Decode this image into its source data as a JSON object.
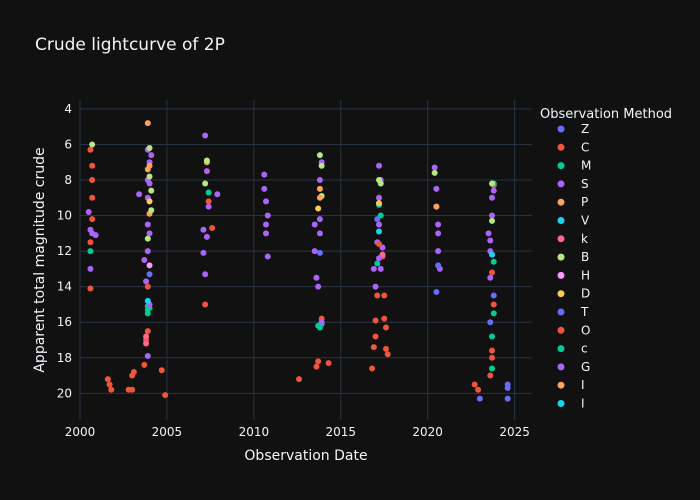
{
  "chart_data": {
    "type": "scatter",
    "title": "Crude lightcurve of 2P",
    "xlabel": "Observation Date",
    "ylabel": "Apparent total magnitude crude",
    "xlim": [
      2000,
      2026
    ],
    "ylim": [
      21.5,
      3.5
    ],
    "y_reversed": true,
    "x_ticks": [
      2000,
      2005,
      2010,
      2015,
      2020,
      2025
    ],
    "y_ticks": [
      4,
      6,
      8,
      10,
      12,
      14,
      16,
      18,
      20
    ],
    "grid": true,
    "legend_title": "Observation Method",
    "legend_position": "right",
    "series": [
      {
        "name": "Z",
        "color": "#636efa",
        "points": [
          [
            2020.5,
            14.3
          ],
          [
            2023.0,
            20.3
          ],
          [
            2023.6,
            16.0
          ],
          [
            2023.8,
            14.5
          ],
          [
            2024.6,
            19.5
          ],
          [
            2024.6,
            19.7
          ],
          [
            2024.6,
            20.3
          ]
        ]
      },
      {
        "name": "C",
        "color": "#ef553b",
        "points": [
          [
            2000.6,
            6.3
          ],
          [
            2000.7,
            7.2
          ],
          [
            2000.7,
            8.0
          ],
          [
            2000.7,
            9.0
          ],
          [
            2000.6,
            11.5
          ],
          [
            2000.6,
            14.1
          ],
          [
            2001.6,
            19.2
          ],
          [
            2001.7,
            19.5
          ],
          [
            2001.8,
            19.8
          ],
          [
            2002.8,
            19.8
          ],
          [
            2003.0,
            19.0
          ],
          [
            2003.0,
            19.8
          ],
          [
            2003.1,
            18.8
          ],
          [
            2003.7,
            18.4
          ],
          [
            2003.8,
            17.0
          ],
          [
            2003.9,
            16.5
          ],
          [
            2003.9,
            14.0
          ],
          [
            2004.7,
            18.7
          ],
          [
            2004.9,
            20.1
          ],
          [
            2007.2,
            15.0
          ],
          [
            2007.6,
            10.7
          ],
          [
            2012.6,
            19.2
          ],
          [
            2013.6,
            18.5
          ],
          [
            2013.7,
            18.2
          ],
          [
            2014.3,
            18.3
          ],
          [
            2013.9,
            15.8
          ],
          [
            2016.8,
            18.6
          ],
          [
            2016.9,
            17.4
          ],
          [
            2017.0,
            16.8
          ],
          [
            2017.0,
            15.9
          ],
          [
            2017.1,
            14.5
          ],
          [
            2017.4,
            12.3
          ],
          [
            2017.5,
            14.5
          ],
          [
            2017.5,
            15.8
          ],
          [
            2017.6,
            16.3
          ],
          [
            2017.6,
            17.5
          ],
          [
            2017.7,
            17.8
          ],
          [
            2022.7,
            19.5
          ],
          [
            2022.9,
            19.8
          ],
          [
            2023.6,
            19.0
          ],
          [
            2023.7,
            18.0
          ],
          [
            2023.7,
            17.6
          ],
          [
            2023.8,
            15.0
          ],
          [
            2023.7,
            13.2
          ],
          [
            2023.8,
            8.3
          ]
        ]
      },
      {
        "name": "M",
        "color": "#00cc96",
        "points": [
          [
            2000.6,
            12.0
          ],
          [
            2003.9,
            15.1
          ],
          [
            2003.9,
            15.5
          ],
          [
            2004.0,
            15.2
          ],
          [
            2007.4,
            8.7
          ],
          [
            2013.8,
            16.3
          ],
          [
            2013.9,
            16.1
          ],
          [
            2017.2,
            9.4
          ],
          [
            2017.1,
            12.7
          ],
          [
            2023.7,
            18.6
          ],
          [
            2023.7,
            16.8
          ],
          [
            2023.8,
            15.5
          ],
          [
            2023.8,
            8.2
          ]
        ]
      },
      {
        "name": "S",
        "color": "#ab63fa",
        "points": [
          [
            2000.5,
            9.8
          ],
          [
            2000.6,
            10.8
          ],
          [
            2000.7,
            11.0
          ],
          [
            2000.9,
            11.1
          ],
          [
            2000.6,
            13.0
          ],
          [
            2003.4,
            8.8
          ],
          [
            2003.7,
            12.5
          ],
          [
            2003.8,
            13.7
          ],
          [
            2003.9,
            12.0
          ],
          [
            2004.0,
            11.0
          ],
          [
            2003.9,
            10.5
          ],
          [
            2003.9,
            9.0
          ],
          [
            2003.9,
            8.0
          ],
          [
            2004.0,
            7.0
          ],
          [
            2004.1,
            6.6
          ],
          [
            2003.9,
            6.3
          ],
          [
            2003.9,
            17.9
          ],
          [
            2004.0,
            15.0
          ],
          [
            2007.1,
            10.8
          ],
          [
            2007.1,
            12.1
          ],
          [
            2007.2,
            13.3
          ],
          [
            2007.3,
            11.2
          ],
          [
            2007.4,
            9.5
          ],
          [
            2007.2,
            5.5
          ],
          [
            2007.9,
            8.8
          ],
          [
            2007.3,
            7.5
          ],
          [
            2010.6,
            7.7
          ],
          [
            2010.6,
            8.5
          ],
          [
            2010.7,
            9.2
          ],
          [
            2010.8,
            10.0
          ],
          [
            2010.7,
            11.0
          ],
          [
            2010.8,
            12.3
          ],
          [
            2010.7,
            10.5
          ],
          [
            2013.5,
            12.0
          ],
          [
            2013.5,
            10.5
          ],
          [
            2013.6,
            13.5
          ],
          [
            2013.7,
            14.0
          ],
          [
            2013.8,
            8.0
          ],
          [
            2013.9,
            7.0
          ],
          [
            2013.8,
            11.0
          ],
          [
            2013.9,
            16.0
          ],
          [
            2016.9,
            13.0
          ],
          [
            2017.0,
            14.0
          ],
          [
            2017.1,
            11.5
          ],
          [
            2017.2,
            9.0
          ],
          [
            2017.2,
            7.2
          ],
          [
            2017.3,
            8.0
          ],
          [
            2017.2,
            10.5
          ],
          [
            2017.4,
            11.8
          ],
          [
            2017.3,
            13.0
          ],
          [
            2020.4,
            7.3
          ],
          [
            2020.5,
            8.5
          ],
          [
            2020.5,
            9.5
          ],
          [
            2020.6,
            10.5
          ],
          [
            2020.6,
            12.0
          ],
          [
            2020.7,
            13.0
          ],
          [
            2020.6,
            11.0
          ],
          [
            2023.5,
            11.0
          ],
          [
            2023.6,
            12.0
          ],
          [
            2023.6,
            13.5
          ],
          [
            2023.7,
            10.0
          ],
          [
            2023.7,
            9.0
          ],
          [
            2023.8,
            8.6
          ]
        ]
      },
      {
        "name": "P",
        "color": "#ffa15a",
        "points": [
          [
            2003.9,
            4.8
          ],
          [
            2003.9,
            7.4
          ],
          [
            2004.0,
            9.9
          ],
          [
            2007.3,
            7.0
          ],
          [
            2013.8,
            8.5
          ],
          [
            2020.5,
            9.5
          ]
        ]
      },
      {
        "name": "V",
        "color": "#19d3f3",
        "points": [
          [
            2003.9,
            14.8
          ],
          [
            2017.2,
            10.9
          ],
          [
            2023.7,
            12.2
          ]
        ]
      },
      {
        "name": "k",
        "color": "#ff6692",
        "points": [
          [
            2003.8,
            16.8
          ],
          [
            2003.8,
            17.2
          ],
          [
            2017.4,
            12.2
          ]
        ]
      },
      {
        "name": "B",
        "color": "#b6e880",
        "points": [
          [
            2000.7,
            6.0
          ],
          [
            2004.0,
            6.2
          ],
          [
            2004.0,
            7.8
          ],
          [
            2004.1,
            8.6
          ],
          [
            2004.1,
            9.7
          ],
          [
            2003.9,
            11.3
          ],
          [
            2007.2,
            8.2
          ],
          [
            2007.3,
            6.9
          ],
          [
            2013.8,
            6.6
          ],
          [
            2013.9,
            7.2
          ],
          [
            2013.9,
            8.9
          ],
          [
            2017.2,
            8.0
          ],
          [
            2017.3,
            8.2
          ],
          [
            2020.4,
            7.6
          ],
          [
            2023.7,
            8.2
          ],
          [
            2023.7,
            10.3
          ]
        ]
      },
      {
        "name": "H",
        "color": "#ff97ff",
        "points": [
          [
            2004.0,
            12.8
          ]
        ]
      },
      {
        "name": "D",
        "color": "#fecb52",
        "points": [
          [
            2004.0,
            9.2
          ],
          [
            2013.7,
            9.6
          ],
          [
            2017.2,
            9.3
          ]
        ]
      },
      {
        "name": "T",
        "color": "#636efa",
        "points": [
          [
            2004.0,
            13.3
          ],
          [
            2013.8,
            12.1
          ],
          [
            2017.1,
            10.2
          ],
          [
            2020.6,
            12.8
          ]
        ]
      },
      {
        "name": "O",
        "color": "#ef553b",
        "points": [
          [
            2000.7,
            10.2
          ],
          [
            2007.4,
            9.2
          ],
          [
            2017.2,
            11.6
          ]
        ]
      },
      {
        "name": "c",
        "color": "#00cc96",
        "points": [
          [
            2003.9,
            15.3
          ],
          [
            2013.7,
            16.2
          ],
          [
            2017.3,
            10.0
          ],
          [
            2023.8,
            12.6
          ]
        ]
      },
      {
        "name": "G",
        "color": "#ab63fa",
        "points": [
          [
            2004.0,
            8.2
          ],
          [
            2013.8,
            10.2
          ],
          [
            2017.2,
            12.4
          ],
          [
            2023.6,
            11.4
          ]
        ]
      },
      {
        "name": "I",
        "color": "#ffa15a",
        "points": [
          [
            2004.0,
            7.2
          ],
          [
            2013.8,
            9.0
          ]
        ]
      },
      {
        "name": "I",
        "color": "#19d3f3",
        "points": []
      }
    ]
  }
}
